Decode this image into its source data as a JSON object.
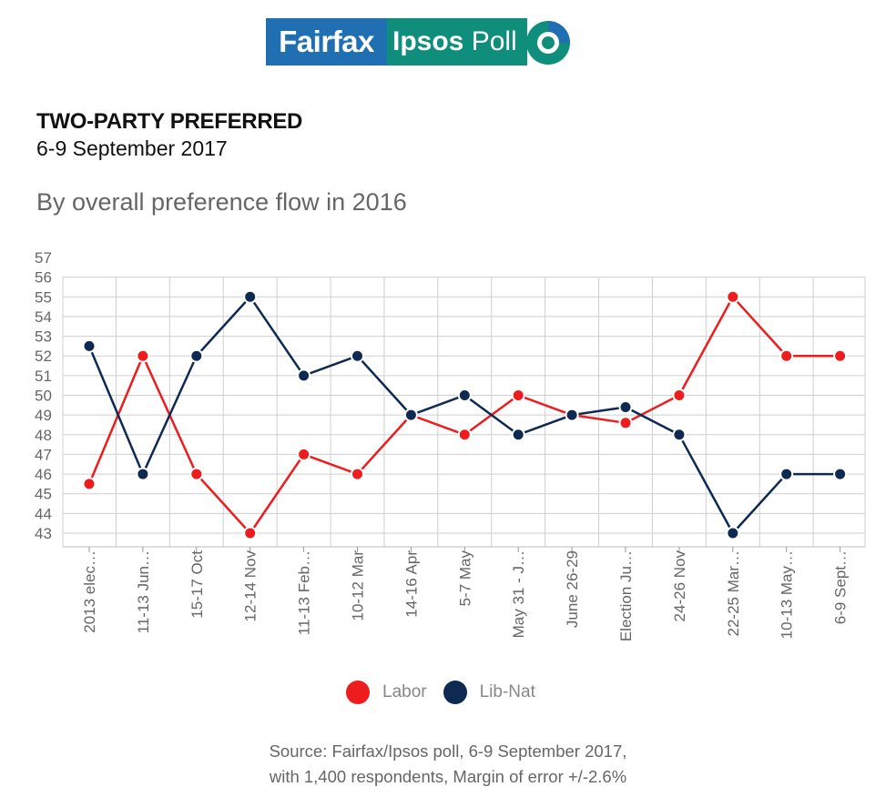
{
  "logo": {
    "part1": "Fairfax",
    "part2a": "Ipsos",
    "part2b": " Poll",
    "colors": {
      "fairfax": "#1f6fb2",
      "ipsos": "#0f8f7b",
      "ring_dark": "#1f6fb2",
      "ring_light": "#0f8f7b"
    }
  },
  "header": {
    "title": "TWO-PARTY PREFERRED",
    "subtitle": "6-9 September 2017",
    "description": "By overall preference flow in 2016"
  },
  "legend": [
    {
      "label": "Labor",
      "color": "#ee1c1c"
    },
    {
      "label": "Lib-Nat",
      "color": "#0e2a52"
    }
  ],
  "source": {
    "line1": "Source: Fairfax/Ipsos poll, 6-9 September 2017,",
    "line2": "with 1,400 respondents, Margin of error +/-2.6%"
  },
  "chart_data": {
    "type": "line",
    "title": "TWO-PARTY PREFERRED",
    "subtitle": "6-9 September 2017",
    "xlabel": "",
    "ylabel": "",
    "ylim": [
      43,
      57
    ],
    "yticks": [
      43,
      44,
      45,
      46,
      47,
      48,
      49,
      50,
      51,
      52,
      53,
      54,
      55,
      56,
      57
    ],
    "grid": true,
    "legend_position": "bottom",
    "categories": [
      "2013 elec…",
      "11-13 Jun…",
      "15-17 Oct",
      "12-14 Nov",
      "11-13 Feb…",
      "10-12 Mar",
      "14-16 Apr",
      "5-7 May",
      "May 31 - J…",
      "June 26-29",
      "Election Ju…",
      "24-26 Nov",
      "22-25 Mar…",
      "10-13 May…",
      "6-9 Sept…"
    ],
    "series": [
      {
        "name": "Labor",
        "color": "#ee1c1c",
        "values": [
          45.5,
          52,
          46,
          43,
          47,
          46,
          49,
          48,
          50,
          49,
          48.6,
          50,
          55,
          52,
          52
        ]
      },
      {
        "name": "Lib-Nat",
        "color": "#0e2a52",
        "values": [
          52.5,
          46,
          52,
          55,
          51,
          52,
          49,
          50,
          48,
          49,
          49.4,
          48,
          43,
          46,
          46
        ]
      }
    ]
  }
}
